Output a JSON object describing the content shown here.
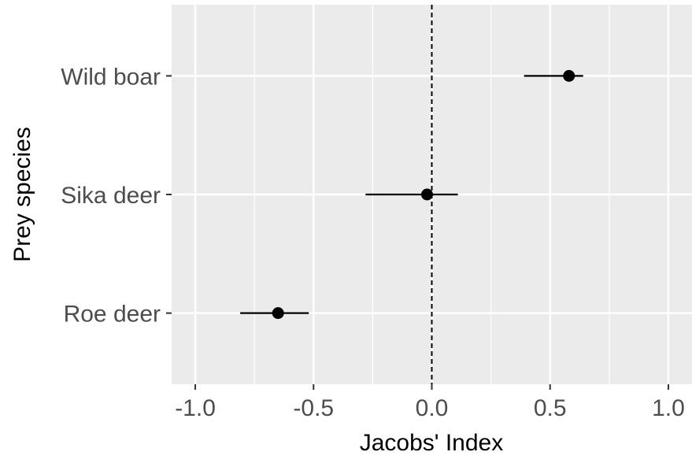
{
  "chart_data": {
    "type": "scatter",
    "xlabel": "Jacobs' Index",
    "ylabel": "Prey species",
    "xlim": [
      -1.1,
      1.1
    ],
    "xticks": [
      -1.0,
      -0.5,
      0.0,
      0.5,
      1.0
    ],
    "xtick_labels": [
      "-1.0",
      "-0.5",
      "0.0",
      "0.5",
      "1.0"
    ],
    "categories": [
      "Wild boar",
      "Sika deer",
      "Roe deer"
    ],
    "points": [
      {
        "category": "Wild boar",
        "value": 0.58,
        "lower": 0.39,
        "upper": 0.64
      },
      {
        "category": "Sika deer",
        "value": -0.02,
        "lower": -0.28,
        "upper": 0.11
      },
      {
        "category": "Roe deer",
        "value": -0.65,
        "lower": -0.81,
        "upper": -0.52
      }
    ],
    "reference_line": {
      "x": 0.0,
      "style": "dashed",
      "color": "#000000"
    },
    "grid": true,
    "legend": "none",
    "panel_color": "#ebebeb",
    "grid_color": "#ffffff",
    "point_color": "#000000",
    "text_color": "#4d4d4d"
  }
}
